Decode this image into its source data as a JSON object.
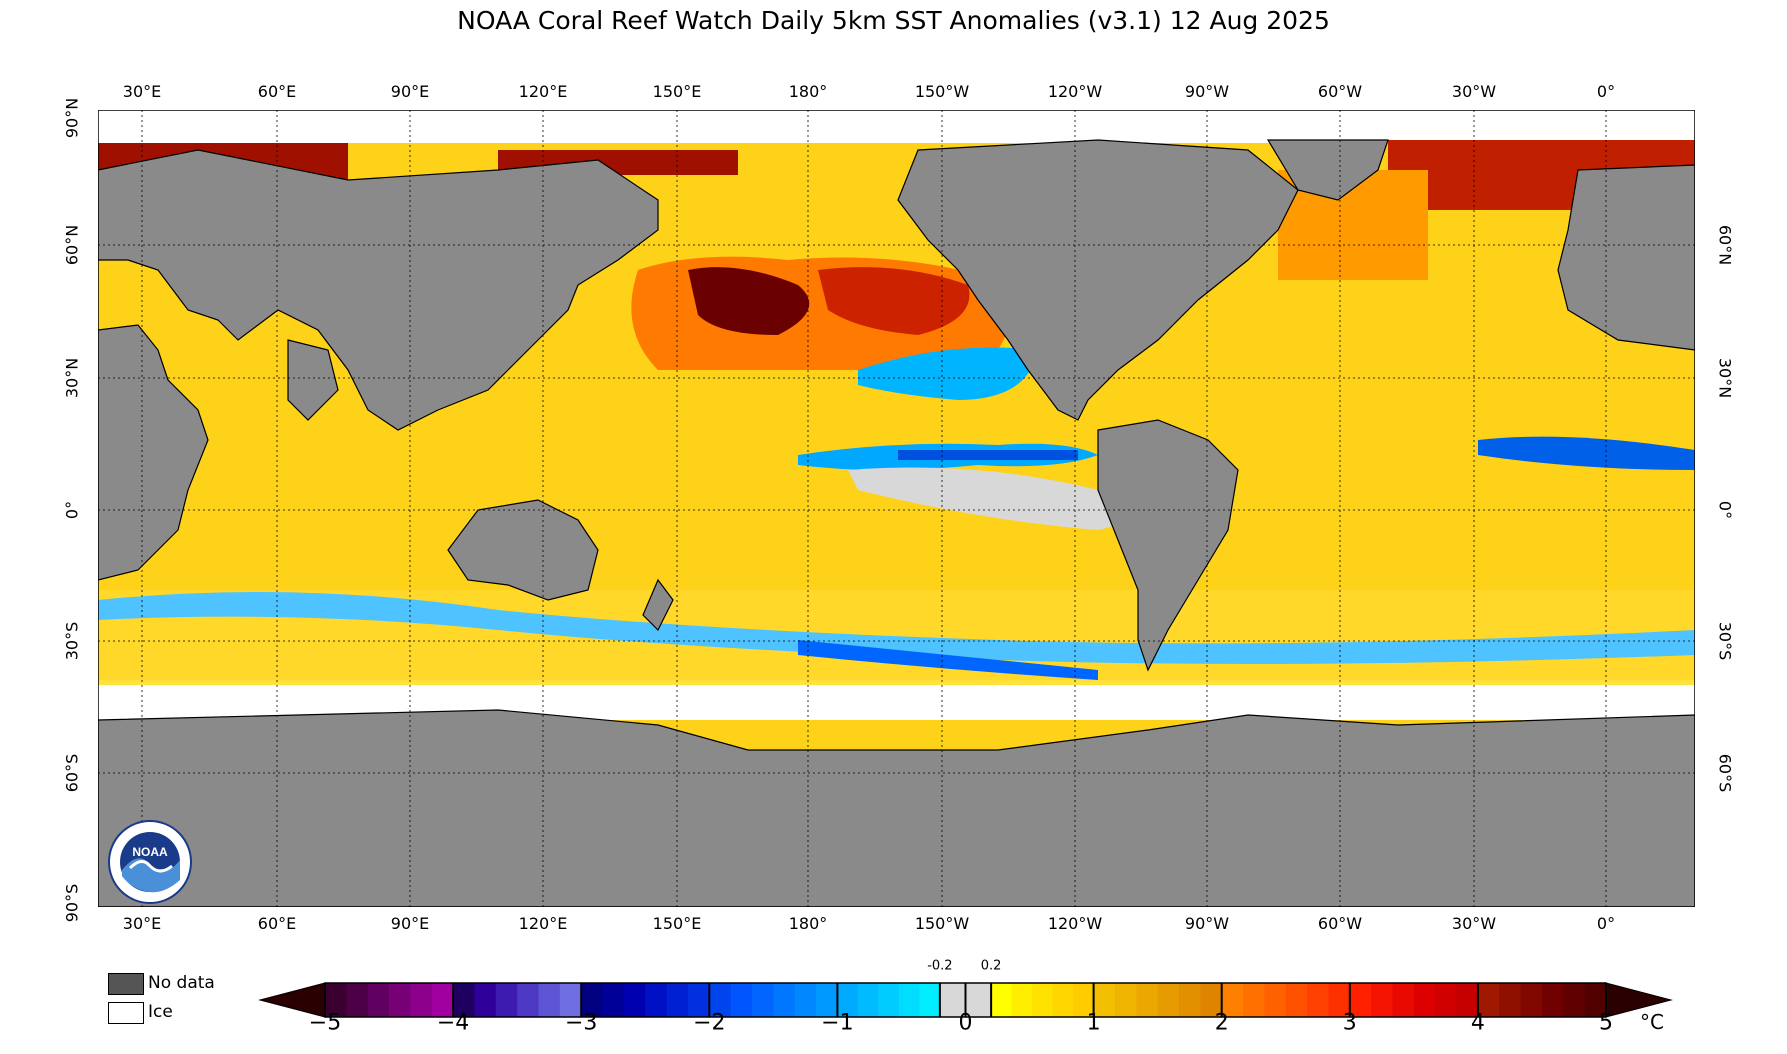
{
  "title": "NOAA Coral Reef Watch Daily 5km SST Anomalies  (v3.1)   12 Aug 2025",
  "longitude_labels": [
    "30°E",
    "60°E",
    "90°E",
    "120°E",
    "150°E",
    "180°",
    "150°W",
    "120°W",
    "90°W",
    "60°W",
    "30°W",
    "0°"
  ],
  "latitude_labels_left": [
    "90°N",
    "60°N",
    "30°N",
    "0°",
    "30°S",
    "60°S",
    "90°S"
  ],
  "latitude_labels_right": [
    "60°N",
    "30°N",
    "0°",
    "30°S",
    "60°S"
  ],
  "legend": {
    "no_data_label": "No data",
    "no_data_color": "#555555",
    "ice_label": "Ice",
    "ice_color": "#ffffff"
  },
  "colorbar": {
    "tick_labels": [
      "−5",
      "−4",
      "−3",
      "−2",
      "−1",
      "0",
      "1",
      "2",
      "3",
      "4",
      "5"
    ],
    "tick_values": [
      -5,
      -4,
      -3,
      -2,
      -1,
      0,
      1,
      2,
      3,
      4,
      5
    ],
    "small_labels": [
      "-0.2",
      "0.2"
    ],
    "small_values": [
      -0.2,
      0.2
    ],
    "unit": "°C",
    "under_color": "#2b0000",
    "over_color": "#2b0000",
    "segments": [
      {
        "from": -5,
        "to": -4,
        "colors": [
          "#3a0030",
          "#4c0045",
          "#600060",
          "#770077",
          "#8c008c",
          "#a000a0"
        ]
      },
      {
        "from": -4,
        "to": -3,
        "colors": [
          "#1e0060",
          "#30009a",
          "#3d1ab0",
          "#4d38c4",
          "#5e55d4",
          "#6e6ee0"
        ]
      },
      {
        "from": -3,
        "to": -2,
        "colors": [
          "#000080",
          "#000099",
          "#0000b0",
          "#0010c4",
          "#0020d4",
          "#0030e0"
        ]
      },
      {
        "from": -2,
        "to": -1,
        "colors": [
          "#0044ee",
          "#0055ff",
          "#0066ff",
          "#0077ff",
          "#0088ff",
          "#0099ff"
        ]
      },
      {
        "from": -1,
        "to": -0.2,
        "colors": [
          "#00aaff",
          "#00bbff",
          "#00ccff",
          "#00ddff",
          "#00eeff"
        ]
      },
      {
        "from": -0.2,
        "to": 0.2,
        "colors": [
          "#d8d8d8",
          "#d8d8d8"
        ]
      },
      {
        "from": 0.2,
        "to": 1,
        "colors": [
          "#ffff00",
          "#ffee00",
          "#ffe200",
          "#ffd600",
          "#ffcc00"
        ]
      },
      {
        "from": 1,
        "to": 2,
        "colors": [
          "#f2c000",
          "#eeb400",
          "#eaa800",
          "#e69c00",
          "#e29000",
          "#de8400"
        ]
      },
      {
        "from": 2,
        "to": 3,
        "colors": [
          "#ff8000",
          "#ff7000",
          "#ff6000",
          "#ff5000",
          "#ff4000",
          "#ff3000"
        ]
      },
      {
        "from": 3,
        "to": 4,
        "colors": [
          "#ff2000",
          "#f41400",
          "#e80a00",
          "#dc0000",
          "#d00000",
          "#c40000"
        ]
      },
      {
        "from": 4,
        "to": 5,
        "colors": [
          "#a01800",
          "#901000",
          "#800800",
          "#700000",
          "#600000",
          "#500000"
        ]
      }
    ]
  },
  "map_colors": {
    "land": "#8a8a8a",
    "ice": "#ffffff",
    "coast": "#000000",
    "grid": "#000000"
  },
  "logo_text": "NOAA"
}
